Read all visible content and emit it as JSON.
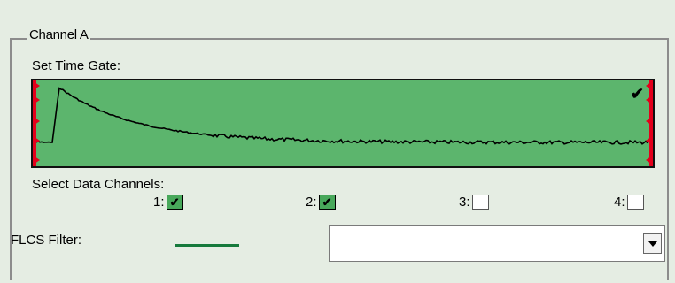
{
  "group": {
    "title": "Channel A"
  },
  "time_gate": {
    "label": "Set Time Gate:",
    "check_mark": "✔"
  },
  "data_channels": {
    "label": "Select Data Channels:",
    "channels": [
      {
        "label": "1:",
        "checked": true
      },
      {
        "label": "2:",
        "checked": true
      },
      {
        "label": "3:",
        "checked": false
      },
      {
        "label": "4:",
        "checked": false
      }
    ]
  },
  "filter": {
    "label": "FLCS Filter:",
    "selected": "",
    "line_color": "#167a3c"
  },
  "colors": {
    "gate_background": "#5cb56d",
    "gate_markers": "#e4001b",
    "background": "#e5ede3"
  },
  "icons": {
    "dropdown": "chevron-down-icon",
    "checkbox_checked": "check-icon"
  }
}
